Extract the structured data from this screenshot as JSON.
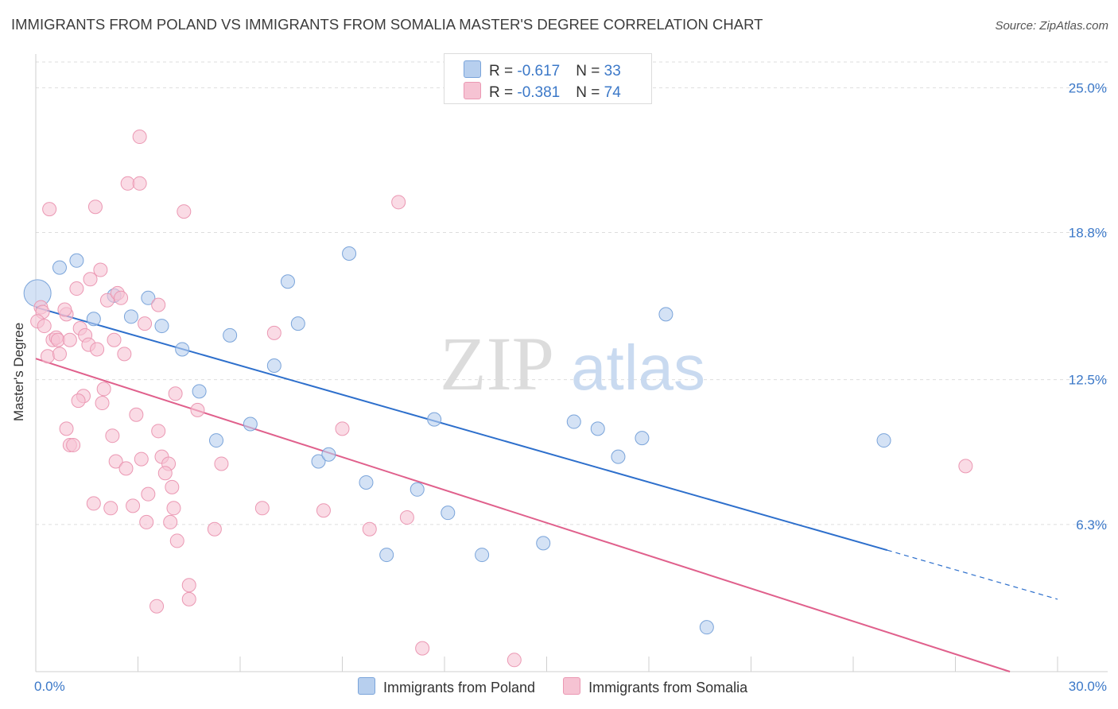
{
  "title": "IMMIGRANTS FROM POLAND VS IMMIGRANTS FROM SOMALIA MASTER'S DEGREE CORRELATION CHART",
  "source": "Source: ZipAtlas.com",
  "watermark": {
    "zip": "ZIP",
    "atlas": "atlas"
  },
  "legend": {
    "poland": {
      "r_label": "R = ",
      "r_value": "-0.617",
      "n_label": "N = ",
      "n_value": "33"
    },
    "somalia": {
      "r_label": "R = ",
      "r_value": "-0.381",
      "n_label": "N = ",
      "n_value": "74"
    }
  },
  "colors": {
    "poland_fill": "#b7cfee",
    "poland_stroke": "#7aa4da",
    "poland_line": "#2d6fcc",
    "somalia_fill": "#f6c3d3",
    "somalia_stroke": "#eb98b3",
    "somalia_line": "#e0608c",
    "axis_text": "#3b78c8",
    "grid": "#dddddd"
  },
  "chart_data": {
    "type": "scatter",
    "title": "IMMIGRANTS FROM POLAND VS IMMIGRANTS FROM SOMALIA MASTER'S DEGREE CORRELATION CHART",
    "xlabel": "",
    "ylabel": "Master's Degree",
    "xlim": [
      0,
      30
    ],
    "ylim": [
      0,
      26.1
    ],
    "x_tick_labels": [
      "0.0%",
      "30.0%"
    ],
    "y_ticks": [
      6.3,
      12.5,
      18.8,
      25.0
    ],
    "y_tick_labels": [
      "6.3%",
      "12.5%",
      "18.8%",
      "25.0%"
    ],
    "grid": true,
    "legend_position": "bottom",
    "series": [
      {
        "name": "Immigrants from Poland",
        "color": "#7aa4da",
        "points": [
          {
            "x": 0.05,
            "y": 16.2,
            "big": true
          },
          {
            "x": 0.7,
            "y": 17.3
          },
          {
            "x": 1.2,
            "y": 17.6
          },
          {
            "x": 2.3,
            "y": 16.1
          },
          {
            "x": 3.3,
            "y": 16.0
          },
          {
            "x": 1.7,
            "y": 15.1
          },
          {
            "x": 2.8,
            "y": 15.2
          },
          {
            "x": 3.7,
            "y": 14.8
          },
          {
            "x": 4.3,
            "y": 13.8
          },
          {
            "x": 5.7,
            "y": 14.4
          },
          {
            "x": 7.4,
            "y": 16.7
          },
          {
            "x": 7.7,
            "y": 14.9
          },
          {
            "x": 9.2,
            "y": 17.9
          },
          {
            "x": 7.0,
            "y": 13.1
          },
          {
            "x": 4.8,
            "y": 12.0
          },
          {
            "x": 6.3,
            "y": 10.6
          },
          {
            "x": 5.3,
            "y": 9.9
          },
          {
            "x": 8.3,
            "y": 9.0
          },
          {
            "x": 8.6,
            "y": 9.3
          },
          {
            "x": 9.7,
            "y": 8.1
          },
          {
            "x": 11.2,
            "y": 7.8
          },
          {
            "x": 11.7,
            "y": 10.8
          },
          {
            "x": 12.1,
            "y": 6.8
          },
          {
            "x": 10.3,
            "y": 5.0
          },
          {
            "x": 13.1,
            "y": 5.0
          },
          {
            "x": 14.9,
            "y": 5.5
          },
          {
            "x": 15.8,
            "y": 10.7
          },
          {
            "x": 16.5,
            "y": 10.4
          },
          {
            "x": 17.1,
            "y": 9.2
          },
          {
            "x": 17.8,
            "y": 10.0
          },
          {
            "x": 18.5,
            "y": 15.3
          },
          {
            "x": 19.7,
            "y": 1.9
          },
          {
            "x": 24.9,
            "y": 9.9
          }
        ],
        "trendline": {
          "x": [
            0,
            25
          ],
          "y": [
            15.6,
            5.2
          ]
        },
        "trendline_dashed": {
          "x": [
            25,
            30
          ],
          "y": [
            5.2,
            3.1
          ]
        }
      },
      {
        "name": "Immigrants from Somalia",
        "color": "#eb98b3",
        "points": [
          {
            "x": 0.4,
            "y": 19.8
          },
          {
            "x": 1.75,
            "y": 19.9
          },
          {
            "x": 3.05,
            "y": 22.9
          },
          {
            "x": 2.7,
            "y": 20.9
          },
          {
            "x": 3.05,
            "y": 20.9
          },
          {
            "x": 4.35,
            "y": 19.7
          },
          {
            "x": 10.65,
            "y": 20.1
          },
          {
            "x": 0.15,
            "y": 15.6
          },
          {
            "x": 0.2,
            "y": 15.4
          },
          {
            "x": 0.05,
            "y": 15.0
          },
          {
            "x": 0.25,
            "y": 14.8
          },
          {
            "x": 0.5,
            "y": 14.2
          },
          {
            "x": 0.6,
            "y": 14.3
          },
          {
            "x": 0.65,
            "y": 14.2
          },
          {
            "x": 0.9,
            "y": 15.3
          },
          {
            "x": 0.85,
            "y": 15.5
          },
          {
            "x": 1.0,
            "y": 14.2
          },
          {
            "x": 1.2,
            "y": 16.4
          },
          {
            "x": 1.6,
            "y": 16.8
          },
          {
            "x": 1.9,
            "y": 17.2
          },
          {
            "x": 2.1,
            "y": 15.9
          },
          {
            "x": 2.4,
            "y": 16.2
          },
          {
            "x": 2.5,
            "y": 16.0
          },
          {
            "x": 3.2,
            "y": 14.9
          },
          {
            "x": 3.6,
            "y": 15.7
          },
          {
            "x": 1.3,
            "y": 14.7
          },
          {
            "x": 1.45,
            "y": 14.4
          },
          {
            "x": 1.55,
            "y": 14.0
          },
          {
            "x": 1.8,
            "y": 13.8
          },
          {
            "x": 2.3,
            "y": 14.2
          },
          {
            "x": 2.6,
            "y": 13.6
          },
          {
            "x": 0.35,
            "y": 13.5
          },
          {
            "x": 0.7,
            "y": 13.6
          },
          {
            "x": 2.0,
            "y": 12.1
          },
          {
            "x": 1.4,
            "y": 11.8
          },
          {
            "x": 1.25,
            "y": 11.6
          },
          {
            "x": 1.95,
            "y": 11.5
          },
          {
            "x": 4.1,
            "y": 11.9
          },
          {
            "x": 4.75,
            "y": 11.2
          },
          {
            "x": 0.9,
            "y": 10.4
          },
          {
            "x": 2.25,
            "y": 10.1
          },
          {
            "x": 2.95,
            "y": 11.0
          },
          {
            "x": 3.6,
            "y": 10.3
          },
          {
            "x": 1.0,
            "y": 9.7
          },
          {
            "x": 1.1,
            "y": 9.7
          },
          {
            "x": 2.35,
            "y": 9.0
          },
          {
            "x": 2.65,
            "y": 8.7
          },
          {
            "x": 3.1,
            "y": 9.1
          },
          {
            "x": 3.7,
            "y": 9.2
          },
          {
            "x": 3.9,
            "y": 8.9
          },
          {
            "x": 3.8,
            "y": 8.5
          },
          {
            "x": 5.45,
            "y": 8.9
          },
          {
            "x": 9.0,
            "y": 10.4
          },
          {
            "x": 4.0,
            "y": 7.9
          },
          {
            "x": 3.3,
            "y": 7.6
          },
          {
            "x": 1.7,
            "y": 7.2
          },
          {
            "x": 2.2,
            "y": 7.0
          },
          {
            "x": 2.85,
            "y": 7.1
          },
          {
            "x": 4.05,
            "y": 7.0
          },
          {
            "x": 6.65,
            "y": 7.0
          },
          {
            "x": 8.45,
            "y": 6.9
          },
          {
            "x": 3.25,
            "y": 6.4
          },
          {
            "x": 3.95,
            "y": 6.4
          },
          {
            "x": 5.25,
            "y": 6.1
          },
          {
            "x": 9.8,
            "y": 6.1
          },
          {
            "x": 10.9,
            "y": 6.6
          },
          {
            "x": 4.15,
            "y": 5.6
          },
          {
            "x": 4.5,
            "y": 3.7
          },
          {
            "x": 4.5,
            "y": 3.1
          },
          {
            "x": 3.55,
            "y": 2.8
          },
          {
            "x": 7.0,
            "y": 14.5
          },
          {
            "x": 11.35,
            "y": 1.0
          },
          {
            "x": 14.05,
            "y": 0.5
          },
          {
            "x": 27.3,
            "y": 8.8
          }
        ],
        "trendline": {
          "x": [
            0,
            28.6
          ],
          "y": [
            13.4,
            0
          ]
        }
      }
    ]
  }
}
